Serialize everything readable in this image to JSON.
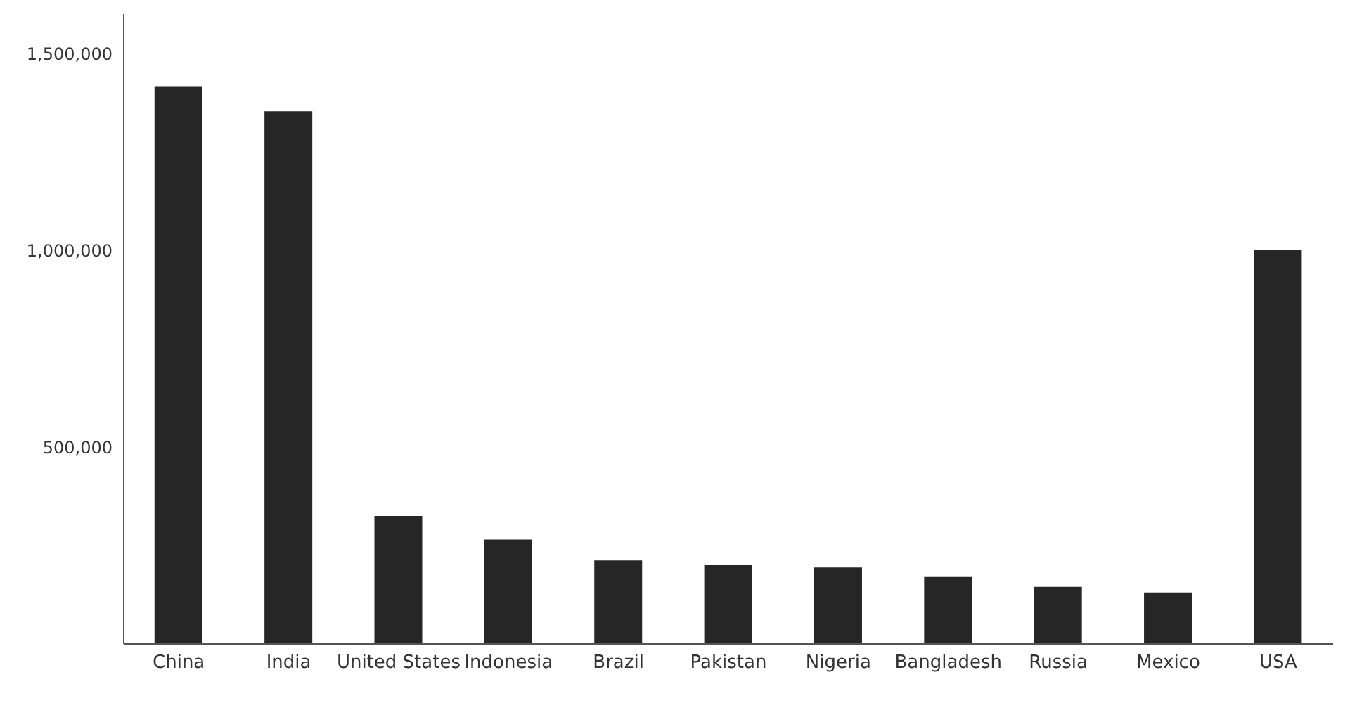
{
  "chart_data": {
    "type": "bar",
    "categories": [
      "China",
      "India",
      "United States",
      "Indonesia",
      "Brazil",
      "Pakistan",
      "Nigeria",
      "Bangladesh",
      "Russia",
      "Mexico",
      "USA"
    ],
    "values": [
      1415000,
      1353000,
      325000,
      265000,
      212000,
      201000,
      194000,
      170000,
      145000,
      131000,
      1000000
    ],
    "color": "#262626",
    "ylim": [
      0,
      1600000
    ],
    "yticks": [
      {
        "value": 500000,
        "label": "500,000"
      },
      {
        "value": 1000000,
        "label": "1,000,000"
      },
      {
        "value": 1500000,
        "label": "1,500,000"
      }
    ],
    "grid": false,
    "legend": false
  }
}
